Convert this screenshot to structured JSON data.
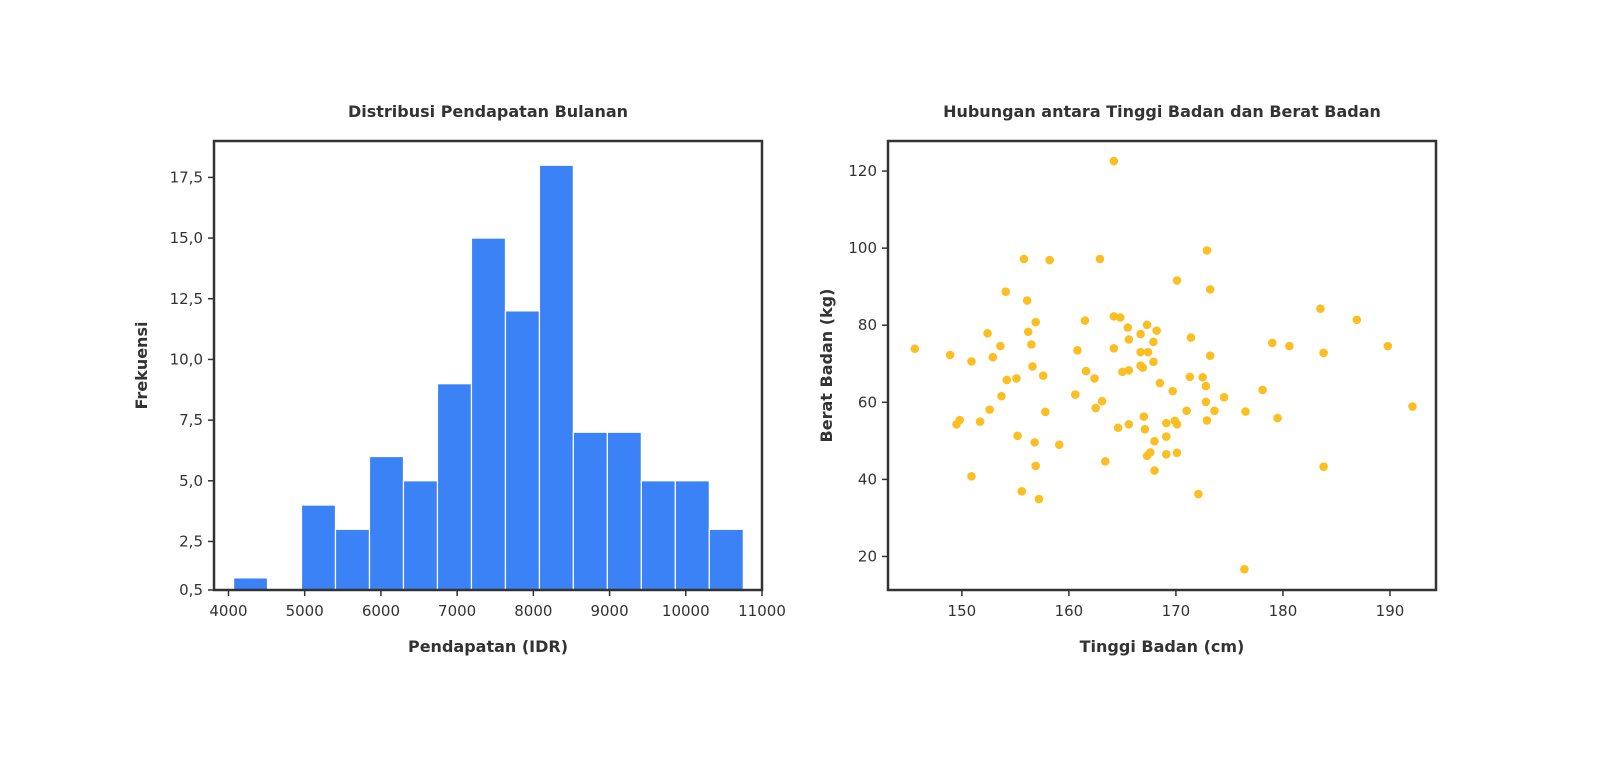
{
  "chart_data": [
    {
      "type": "bar",
      "subtype": "histogram",
      "title": "Distribusi Pendapatan Bulanan",
      "xlabel": "Pendapatan (IDR)",
      "ylabel": "Frekuensi",
      "xlim": [
        3810,
        11000
      ],
      "ylim": [
        0.5,
        19.0
      ],
      "xticks": [
        4000,
        5000,
        6000,
        7000,
        8000,
        9000,
        10000,
        11000
      ],
      "yticks": [
        0.5,
        2.5,
        5.0,
        7.5,
        10.0,
        12.5,
        15.0,
        17.5
      ],
      "ytick_labels": [
        "0,5",
        "2,5",
        "5,0",
        "7,5",
        "10,0",
        "12,5",
        "15,0",
        "17,5"
      ],
      "grid": false,
      "color": "#3b82f6",
      "bins": [
        {
          "x0": 4067,
          "x1": 4512,
          "value": 1
        },
        {
          "x0": 4512,
          "x1": 4958,
          "value": 0
        },
        {
          "x0": 4958,
          "x1": 5404,
          "value": 4
        },
        {
          "x0": 5404,
          "x1": 5850,
          "value": 3
        },
        {
          "x0": 5850,
          "x1": 6296,
          "value": 6
        },
        {
          "x0": 6296,
          "x1": 6742,
          "value": 5
        },
        {
          "x0": 6742,
          "x1": 7188,
          "value": 9
        },
        {
          "x0": 7188,
          "x1": 7634,
          "value": 15
        },
        {
          "x0": 7634,
          "x1": 8080,
          "value": 12
        },
        {
          "x0": 8080,
          "x1": 8525,
          "value": 18
        },
        {
          "x0": 8525,
          "x1": 8971,
          "value": 7
        },
        {
          "x0": 8971,
          "x1": 9417,
          "value": 7
        },
        {
          "x0": 9417,
          "x1": 9863,
          "value": 5
        },
        {
          "x0": 9863,
          "x1": 10309,
          "value": 5
        },
        {
          "x0": 10309,
          "x1": 10755,
          "value": 3
        }
      ]
    },
    {
      "type": "scatter",
      "title": "Hubungan antara Tinggi Badan dan Berat Badan",
      "xlabel": "Tinggi Badan (cm)",
      "ylabel": "Berat Badan (kg)",
      "xlim": [
        143.1,
        194.3
      ],
      "ylim": [
        11.3,
        127.8
      ],
      "xticks": [
        150,
        160,
        170,
        180,
        190
      ],
      "yticks": [
        20,
        40,
        60,
        80,
        100,
        120
      ],
      "grid": false,
      "color": "#fbbf24",
      "points": [
        [
          164.2,
          122.6
        ],
        [
          155.8,
          97.2
        ],
        [
          158.2,
          96.9
        ],
        [
          162.9,
          97.2
        ],
        [
          172.9,
          99.4
        ],
        [
          170.1,
          91.6
        ],
        [
          173.2,
          89.3
        ],
        [
          154.1,
          88.7
        ],
        [
          156.1,
          86.4
        ],
        [
          183.5,
          84.3
        ],
        [
          186.9,
          81.4
        ],
        [
          164.2,
          82.3
        ],
        [
          164.8,
          82.0
        ],
        [
          161.5,
          81.2
        ],
        [
          156.9,
          80.8
        ],
        [
          167.3,
          80.1
        ],
        [
          165.5,
          79.4
        ],
        [
          168.2,
          78.6
        ],
        [
          156.2,
          78.3
        ],
        [
          152.4,
          77.9
        ],
        [
          166.7,
          77.7
        ],
        [
          171.4,
          76.8
        ],
        [
          165.6,
          76.3
        ],
        [
          167.9,
          75.7
        ],
        [
          156.5,
          75.0
        ],
        [
          153.6,
          74.6
        ],
        [
          179.0,
          75.4
        ],
        [
          180.6,
          74.6
        ],
        [
          189.8,
          74.6
        ],
        [
          145.6,
          73.9
        ],
        [
          164.2,
          74.0
        ],
        [
          160.8,
          73.5
        ],
        [
          166.7,
          73.0
        ],
        [
          167.4,
          73.0
        ],
        [
          183.8,
          72.8
        ],
        [
          148.9,
          72.3
        ],
        [
          173.2,
          72.1
        ],
        [
          152.9,
          71.7
        ],
        [
          150.9,
          70.6
        ],
        [
          167.9,
          70.5
        ],
        [
          166.7,
          69.5
        ],
        [
          166.9,
          69.0
        ],
        [
          156.6,
          69.3
        ],
        [
          161.6,
          68.1
        ],
        [
          165.6,
          68.3
        ],
        [
          165.0,
          67.9
        ],
        [
          157.6,
          66.9
        ],
        [
          171.3,
          66.6
        ],
        [
          172.5,
          66.5
        ],
        [
          162.4,
          66.2
        ],
        [
          155.1,
          66.2
        ],
        [
          154.2,
          65.8
        ],
        [
          168.5,
          65.0
        ],
        [
          172.8,
          64.2
        ],
        [
          178.1,
          63.2
        ],
        [
          169.7,
          62.9
        ],
        [
          160.6,
          62.0
        ],
        [
          153.7,
          61.6
        ],
        [
          174.5,
          61.3
        ],
        [
          163.1,
          60.3
        ],
        [
          172.8,
          60.1
        ],
        [
          162.5,
          58.5
        ],
        [
          152.6,
          58.1
        ],
        [
          157.8,
          57.5
        ],
        [
          176.5,
          57.6
        ],
        [
          173.6,
          57.8
        ],
        [
          171.0,
          57.8
        ],
        [
          192.1,
          58.9
        ],
        [
          179.5,
          55.9
        ],
        [
          167.0,
          56.3
        ],
        [
          151.7,
          55.0
        ],
        [
          149.8,
          55.4
        ],
        [
          149.5,
          54.3
        ],
        [
          169.9,
          55.2
        ],
        [
          172.9,
          55.3
        ],
        [
          165.6,
          54.3
        ],
        [
          169.1,
          54.6
        ],
        [
          170.1,
          54.3
        ],
        [
          164.6,
          53.4
        ],
        [
          167.1,
          53.0
        ],
        [
          155.2,
          51.3
        ],
        [
          169.1,
          51.1
        ],
        [
          168.0,
          49.9
        ],
        [
          156.8,
          49.6
        ],
        [
          159.1,
          49.0
        ],
        [
          167.6,
          47.0
        ],
        [
          170.1,
          46.9
        ],
        [
          167.3,
          46.1
        ],
        [
          169.1,
          46.5
        ],
        [
          163.4,
          44.7
        ],
        [
          156.9,
          43.5
        ],
        [
          183.8,
          43.3
        ],
        [
          168.0,
          42.3
        ],
        [
          150.9,
          40.8
        ],
        [
          155.6,
          36.9
        ],
        [
          172.1,
          36.2
        ],
        [
          157.2,
          34.9
        ],
        [
          176.4,
          16.7
        ]
      ]
    }
  ]
}
